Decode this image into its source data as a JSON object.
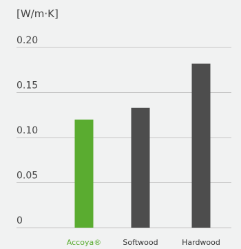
{
  "chart_data": {
    "type": "bar",
    "unit_label": "[W/m·K]",
    "categories": [
      "Accoya®",
      "Softwood",
      "Hardwood"
    ],
    "values": [
      0.12,
      0.133,
      0.182
    ],
    "colors": [
      "#5aac30",
      "#4d4d4d",
      "#4d4d4d"
    ],
    "category_label_colors": [
      "#5aac30",
      "#333333",
      "#333333"
    ],
    "yticks": [
      "0",
      "0.05",
      "0.10",
      "0.15",
      "0.20"
    ],
    "ylim": [
      0,
      0.2
    ],
    "grid": true
  }
}
